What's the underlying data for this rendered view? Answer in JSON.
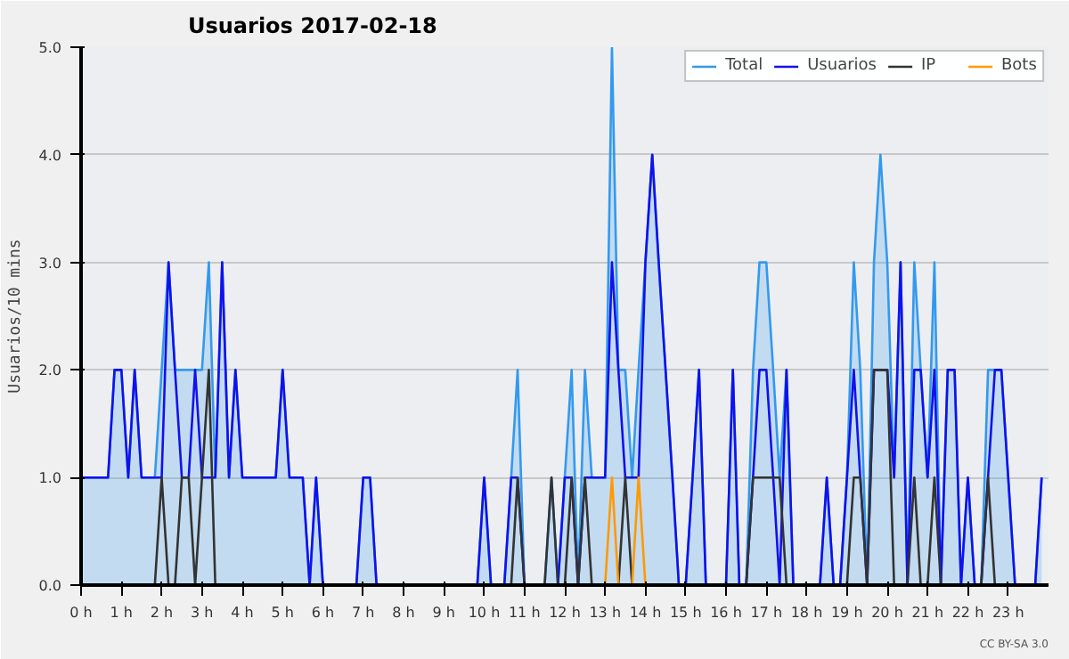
{
  "chart_data": {
    "type": "line",
    "title": "Usuarios  2017-02-18",
    "ylabel": "Usuarios/10 mins",
    "annotations": [
      "CC BY-SA 3.0"
    ],
    "x": [
      0,
      0.17,
      0.33,
      0.5,
      0.67,
      0.83,
      1,
      1.17,
      1.33,
      1.5,
      1.67,
      1.83,
      2,
      2.17,
      2.33,
      2.5,
      2.67,
      2.83,
      3,
      3.17,
      3.33,
      3.5,
      3.67,
      3.83,
      4,
      4.17,
      4.33,
      4.5,
      4.67,
      4.83,
      5,
      5.17,
      5.33,
      5.5,
      5.67,
      5.83,
      6,
      6.17,
      6.33,
      6.5,
      6.67,
      6.83,
      7,
      7.17,
      7.33,
      7.5,
      7.67,
      7.83,
      8,
      8.17,
      8.33,
      8.5,
      8.67,
      8.83,
      9,
      9.17,
      9.33,
      9.5,
      9.67,
      9.83,
      10,
      10.17,
      10.33,
      10.5,
      10.67,
      10.83,
      11,
      11.17,
      11.33,
      11.5,
      11.67,
      11.83,
      12,
      12.17,
      12.33,
      12.5,
      12.67,
      12.83,
      13,
      13.17,
      13.33,
      13.5,
      13.67,
      13.83,
      14,
      14.17,
      14.33,
      14.5,
      14.67,
      14.83,
      15,
      15.17,
      15.33,
      15.5,
      15.67,
      15.83,
      16,
      16.17,
      16.33,
      16.5,
      16.67,
      16.83,
      17,
      17.17,
      17.33,
      17.5,
      17.67,
      17.83,
      18,
      18.17,
      18.33,
      18.5,
      18.67,
      18.83,
      19,
      19.17,
      19.33,
      19.5,
      19.67,
      19.83,
      20,
      20.17,
      20.33,
      20.5,
      20.67,
      20.83,
      21,
      21.17,
      21.33,
      21.5,
      21.67,
      21.83,
      22,
      22.17,
      22.33,
      22.5,
      22.67,
      22.83,
      23,
      23.17,
      23.33,
      23.5,
      23.67,
      23.83
    ],
    "series": [
      {
        "name": "Total",
        "type": "area",
        "color": "#3399ee",
        "values": [
          1,
          1,
          1,
          1,
          1,
          2,
          2,
          1,
          2,
          1,
          1,
          1,
          2,
          3,
          2,
          2,
          2,
          2,
          2,
          3,
          1,
          3,
          1,
          2,
          1,
          1,
          1,
          1,
          1,
          1,
          2,
          1,
          1,
          1,
          0,
          1,
          0,
          0,
          0,
          0,
          0,
          0,
          1,
          1,
          0,
          0,
          0,
          0,
          0,
          0,
          0,
          0,
          0,
          0,
          0,
          0,
          0,
          0,
          0,
          0,
          1,
          0,
          0,
          0,
          1,
          2,
          0,
          0,
          0,
          0,
          1,
          0,
          1,
          2,
          0,
          2,
          1,
          1,
          1,
          5,
          2,
          2,
          1,
          2,
          3,
          4,
          3,
          2,
          1,
          0,
          0,
          1,
          2,
          0,
          0,
          0,
          0,
          2,
          0,
          0,
          2,
          3,
          3,
          2,
          1,
          2,
          0,
          0,
          0,
          0,
          0,
          1,
          0,
          0,
          1,
          3,
          2,
          0,
          3,
          4,
          3,
          1,
          3,
          0,
          3,
          2,
          1,
          3,
          0,
          2,
          2,
          0,
          1,
          0,
          0,
          2,
          2,
          2,
          1,
          0,
          0,
          0,
          0,
          1
        ]
      },
      {
        "name": "Usuarios",
        "color": "#1111ee",
        "values": [
          1,
          1,
          1,
          1,
          1,
          2,
          2,
          1,
          2,
          1,
          1,
          1,
          1,
          3,
          2,
          1,
          1,
          2,
          1,
          1,
          1,
          3,
          1,
          2,
          1,
          1,
          1,
          1,
          1,
          1,
          2,
          1,
          1,
          1,
          0,
          1,
          0,
          0,
          0,
          0,
          0,
          0,
          1,
          1,
          0,
          0,
          0,
          0,
          0,
          0,
          0,
          0,
          0,
          0,
          0,
          0,
          0,
          0,
          0,
          0,
          1,
          0,
          0,
          0,
          1,
          1,
          0,
          0,
          0,
          0,
          0,
          0,
          1,
          1,
          0,
          1,
          1,
          1,
          1,
          3,
          2,
          1,
          1,
          1,
          3,
          4,
          3,
          2,
          1,
          0,
          0,
          1,
          2,
          0,
          0,
          0,
          0,
          2,
          0,
          0,
          1,
          2,
          2,
          1,
          0,
          2,
          0,
          0,
          0,
          0,
          0,
          1,
          0,
          0,
          1,
          2,
          1,
          0,
          2,
          2,
          2,
          1,
          3,
          0,
          2,
          2,
          1,
          2,
          0,
          2,
          2,
          0,
          1,
          0,
          0,
          1,
          2,
          2,
          1,
          0,
          0,
          0,
          0,
          1
        ]
      },
      {
        "name": "IP",
        "color": "#333333",
        "values": [
          0,
          0,
          0,
          0,
          0,
          0,
          0,
          0,
          0,
          0,
          0,
          0,
          1,
          0,
          0,
          1,
          1,
          0,
          1,
          2,
          0,
          0,
          0,
          0,
          0,
          0,
          0,
          0,
          0,
          0,
          0,
          0,
          0,
          0,
          0,
          0,
          0,
          0,
          0,
          0,
          0,
          0,
          0,
          0,
          0,
          0,
          0,
          0,
          0,
          0,
          0,
          0,
          0,
          0,
          0,
          0,
          0,
          0,
          0,
          0,
          0,
          0,
          0,
          0,
          0,
          1,
          0,
          0,
          0,
          0,
          1,
          0,
          0,
          1,
          0,
          1,
          0,
          0,
          0,
          0,
          0,
          1,
          0,
          0,
          0,
          0,
          0,
          0,
          0,
          0,
          0,
          0,
          0,
          0,
          0,
          0,
          0,
          0,
          0,
          0,
          1,
          1,
          1,
          1,
          1,
          0,
          0,
          0,
          0,
          0,
          0,
          0,
          0,
          0,
          0,
          1,
          1,
          0,
          2,
          2,
          2,
          0,
          0,
          0,
          1,
          0,
          0,
          1,
          0,
          0,
          0,
          0,
          0,
          0,
          0,
          1,
          0,
          0,
          0,
          0,
          0,
          0,
          0,
          0
        ]
      },
      {
        "name": "Bots",
        "color": "#ff9900",
        "values": [
          null,
          null,
          null,
          null,
          null,
          null,
          null,
          null,
          null,
          null,
          null,
          null,
          null,
          null,
          null,
          null,
          null,
          null,
          null,
          null,
          null,
          null,
          null,
          null,
          null,
          null,
          null,
          null,
          null,
          null,
          null,
          null,
          null,
          null,
          null,
          null,
          null,
          null,
          null,
          null,
          null,
          null,
          null,
          null,
          null,
          null,
          null,
          null,
          null,
          null,
          null,
          null,
          null,
          null,
          null,
          null,
          null,
          null,
          null,
          null,
          null,
          null,
          null,
          null,
          null,
          null,
          null,
          null,
          null,
          null,
          null,
          null,
          null,
          null,
          null,
          null,
          null,
          null,
          0,
          1,
          0,
          null,
          0,
          1,
          0,
          null,
          null,
          null,
          null,
          null,
          null,
          null,
          null,
          null,
          null,
          null,
          null,
          null,
          null,
          null,
          null,
          null,
          null,
          null,
          null,
          null,
          null,
          null,
          null,
          null,
          null,
          null,
          null,
          null,
          null,
          null,
          null,
          null,
          null,
          null,
          null,
          null,
          null,
          null,
          null,
          null,
          null,
          null,
          null,
          null,
          null,
          null,
          null,
          null,
          null,
          null,
          null,
          null,
          null,
          null,
          null,
          null,
          null,
          null
        ]
      }
    ],
    "xlim": [
      0,
      24
    ],
    "xticks": [
      {
        "value": 0,
        "label": "0 h"
      },
      {
        "value": 1,
        "label": "1 h"
      },
      {
        "value": 2,
        "label": "2 h"
      },
      {
        "value": 3,
        "label": "3 h"
      },
      {
        "value": 4,
        "label": "4 h"
      },
      {
        "value": 5,
        "label": "5 h"
      },
      {
        "value": 6,
        "label": "6 h"
      },
      {
        "value": 7,
        "label": "7 h"
      },
      {
        "value": 8,
        "label": "8 h"
      },
      {
        "value": 9,
        "label": "9 h"
      },
      {
        "value": 10,
        "label": "10 h"
      },
      {
        "value": 11,
        "label": "11 h"
      },
      {
        "value": 12,
        "label": "12 h"
      },
      {
        "value": 13,
        "label": "13 h"
      },
      {
        "value": 14,
        "label": "14 h"
      },
      {
        "value": 15,
        "label": "15 h"
      },
      {
        "value": 16,
        "label": "16 h"
      },
      {
        "value": 17,
        "label": "17 h"
      },
      {
        "value": 18,
        "label": "18 h"
      },
      {
        "value": 19,
        "label": "19 h"
      },
      {
        "value": 20,
        "label": "20 h"
      },
      {
        "value": 21,
        "label": "21 h"
      },
      {
        "value": 22,
        "label": "22 h"
      },
      {
        "value": 23,
        "label": "23 h"
      }
    ],
    "ylim": [
      0,
      5
    ],
    "yticks": [
      {
        "value": 0,
        "label": "0.0"
      },
      {
        "value": 1,
        "label": "1.0"
      },
      {
        "value": 2,
        "label": "2.0"
      },
      {
        "value": 3,
        "label": "3.0"
      },
      {
        "value": 4,
        "label": "4.0"
      },
      {
        "value": 5,
        "label": "5.0"
      }
    ],
    "grid": "y",
    "legend": "top right",
    "line_style": "solid"
  }
}
